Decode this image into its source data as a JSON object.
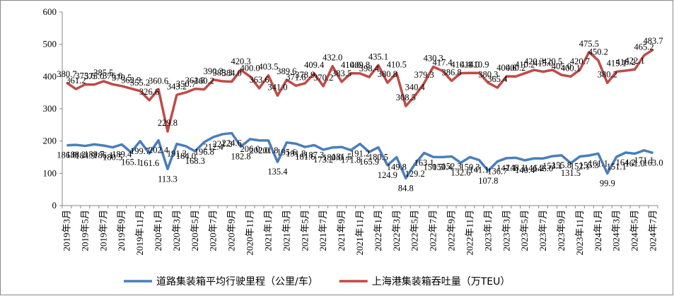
{
  "chart_data": {
    "type": "line",
    "categories": [
      "2019年3月",
      null,
      "2019年5月",
      null,
      "2019年7月",
      null,
      "2019年9月",
      null,
      "2019年11月",
      null,
      "2020年1月",
      null,
      "2020年3月",
      null,
      "2020年5月",
      null,
      "2020年7月",
      null,
      "2020年9月",
      null,
      "2020年11月",
      null,
      "2021年1月",
      null,
      "2021年3月",
      null,
      "2021年5月",
      null,
      "2021年7月",
      null,
      "2021年9月",
      null,
      "2021年11月",
      null,
      "2022年1月",
      null,
      "2022年3月",
      null,
      "2022年5月",
      null,
      "2022年7月",
      null,
      "2022年9月",
      null,
      "2022年11月",
      null,
      "2023年1月",
      null,
      "2023年3月",
      null,
      "2023年5月",
      null,
      "2023年7月",
      null,
      "2023年9月",
      null,
      "2023年11月",
      null,
      "2024年1月",
      null,
      "2024年3月",
      null,
      "2024年5月",
      null,
      "2024年7月"
    ],
    "series": [
      {
        "name": "道路集装箱平均行驶里程（公里/车）",
        "color": "#4a7ebb",
        "values": [
          186.8,
          188.2,
          184.9,
          189.7,
          186.1,
          180.5,
          189.4,
          165.1,
          199.7,
          161.6,
          202.4,
          113.3,
          191.3,
          184.0,
          168.3,
          196.8,
          212.4,
          221.3,
          224.6,
          182.8,
          206.0,
          202.0,
          201.8,
          135.4,
          195.6,
          191.8,
          181.6,
          187.3,
          173.2,
          180.0,
          181.5,
          171.8,
          191.2,
          165.9,
          180.5,
          124.9,
          149.8,
          84.8,
          129.2,
          163.1,
          150.5,
          150.4,
          152.3,
          132.6,
          150.3,
          141.1,
          107.8,
          136.7,
          147.1,
          148.1,
          140.4,
          146.2,
          146.0,
          153.1,
          155.8,
          131.5,
          152.1,
          155.3,
          161.1,
          99.9,
          151.1,
          164.2,
          161.0,
          171.1,
          163.0
        ],
        "value_labels": [
          "186.8",
          "188.2",
          "184.9",
          "189.7",
          "186.1",
          "180.5",
          "189.4",
          "165.1",
          "199.7",
          "161.6",
          "202.4",
          "113.3",
          "191.3",
          "184.0",
          "168.3",
          "196.8",
          "212.4",
          "221.3",
          "224.6",
          "182.8",
          "206.0",
          "202.0",
          "201.8",
          "135.4",
          "195.6",
          "191.8",
          "181.6",
          "187.3",
          "173.2",
          "180.0",
          "181.5",
          "171.8",
          "191.2",
          "165.9",
          "180.5",
          "124.9",
          "149.8",
          "84.8",
          "129.2",
          "163.1",
          "150.5",
          "150.4",
          "152.3",
          "132.6",
          "150.3",
          "141.1",
          "107.8",
          "136.7",
          "147.1",
          "148.1",
          "140.4",
          "146.2",
          "146.0",
          "153.1",
          "155.8",
          "131.5",
          "152.1",
          "155.3",
          "161.1",
          "99.9",
          "151.1",
          "164.2",
          "161.0",
          "171.1",
          "163.0"
        ]
      },
      {
        "name": "上海港集装箱吞吐量（万TEU）",
        "color": "#be4b48",
        "values": [
          380.7,
          361.2,
          375.6,
          375.0,
          385.5,
          376.0,
          370.5,
          362.9,
          355.2,
          326.6,
          360.6,
          229.8,
          343.2,
          350.7,
          361.8,
          360.2,
          390.3,
          385.3,
          384.0,
          420.3,
          400.0,
          363.6,
          403.5,
          341.0,
          389.6,
          371.6,
          378.9,
          409.4,
          370.2,
          432.0,
          383.5,
          410.0,
          409.8,
          398.4,
          435.1,
          380.8,
          410.5,
          308.5,
          340.4,
          379.3,
          430.3,
          417.4,
          386.8,
          410.4,
          411.0,
          410.9,
          380.3,
          365.4,
          400.6,
          400.2,
          410.2,
          420.3,
          415.0,
          420.5,
          405.0,
          400.1,
          420.7,
          475.5,
          450.2,
          380.2,
          415.1,
          418.2,
          422.1,
          465.2,
          483.7
        ],
        "value_labels": [
          "380.7",
          "361.2",
          "375.6",
          "375.0",
          "385.5",
          "376.0",
          "370.5",
          "362.9",
          "355.2",
          "326.6",
          "360.6",
          "229.8",
          "343.2",
          "350.7",
          "361.8",
          "360.2",
          "390.3",
          "385.3",
          "384.0",
          "420.3",
          "400.0",
          "363.6",
          "403.5",
          "341.0",
          "389.6",
          "371.6",
          "378.9",
          "409.4",
          "370.2",
          "432.0",
          "383.5",
          "410.0",
          "409.8",
          "398.4",
          "435.1",
          "380.8",
          "410.5",
          "308.5",
          "340.4",
          "379.3",
          "430.3",
          "417.4",
          "386.8",
          "410.4",
          "411.0",
          "410.9",
          "380.3",
          "365.4",
          "400.6",
          "400.2",
          "410.2",
          "420.3",
          "415.0",
          "420.5",
          "405.0",
          "400.1",
          "420.7",
          "475.5",
          "450.2",
          "380.2",
          "415.1",
          "418.2",
          "422.1",
          "465.2",
          "483.7"
        ]
      }
    ],
    "ylim": [
      0,
      600
    ],
    "yticks": [
      0,
      100,
      200,
      300,
      400,
      500,
      600
    ],
    "grid": false,
    "legend": "bottom"
  }
}
